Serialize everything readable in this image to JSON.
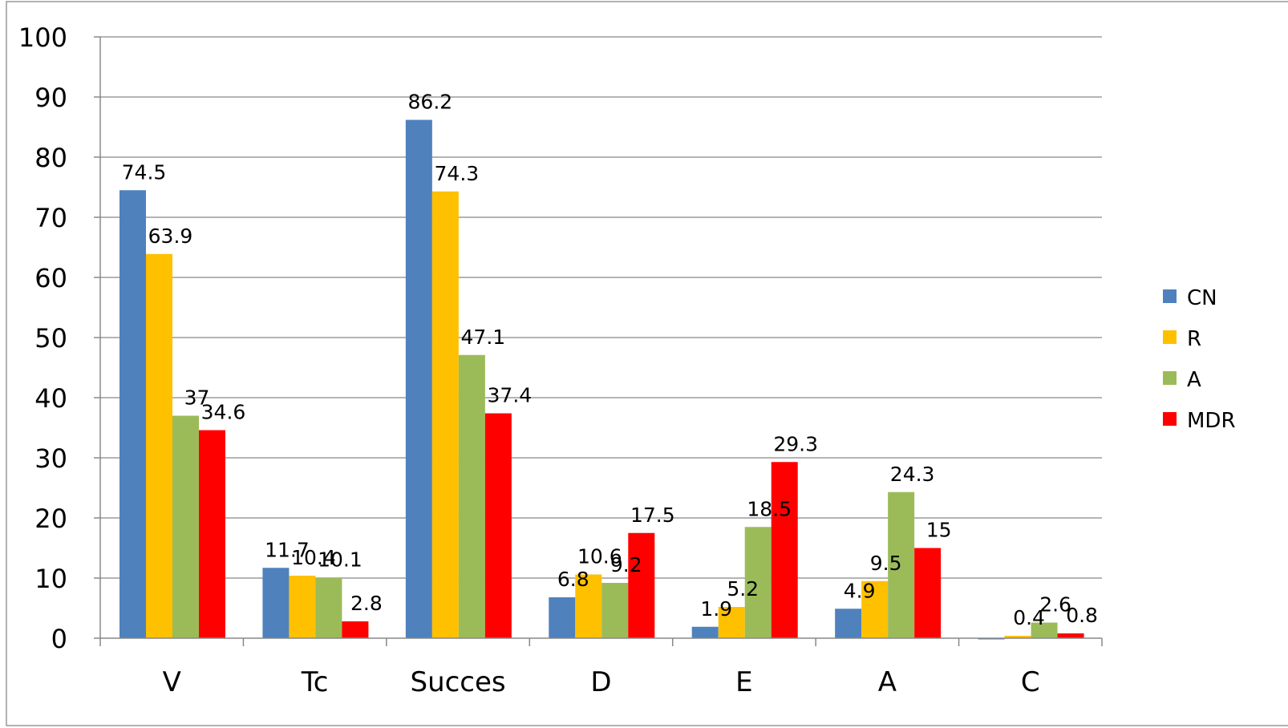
{
  "chart_data": {
    "type": "bar",
    "categories": [
      "V",
      "Tc",
      "Succes",
      "D",
      "E",
      "A",
      "C"
    ],
    "series": [
      {
        "name": "CN",
        "color": "#4F81BD",
        "values": [
          74.5,
          11.7,
          86.2,
          6.8,
          1.9,
          4.9,
          0.0
        ]
      },
      {
        "name": "R",
        "color": "#FFC000",
        "values": [
          63.9,
          10.4,
          74.3,
          10.6,
          5.2,
          9.5,
          0.4
        ]
      },
      {
        "name": "A",
        "color": "#9BBB59",
        "values": [
          37,
          10.1,
          47.1,
          9.2,
          18.5,
          24.3,
          2.6
        ]
      },
      {
        "name": "MDR",
        "color": "#FF0000",
        "values": [
          34.6,
          2.8,
          37.4,
          17.5,
          29.3,
          15,
          0.8
        ]
      }
    ],
    "data_labels": [
      [
        "74.5",
        "11.7",
        "86.2",
        "6.8",
        "1.9",
        "4.9",
        ""
      ],
      [
        "63.9",
        "10.4",
        "74.3",
        "10.6",
        "5.2",
        "9.5",
        "0.4"
      ],
      [
        "37",
        "10.1",
        "47.1",
        "9.2",
        "18.5",
        "24.3",
        "2.6"
      ],
      [
        "34.6",
        "2.8",
        "37.4",
        "17.5",
        "29.3",
        "15",
        "0.8"
      ]
    ],
    "y_ticks": [
      "0",
      "10",
      "20",
      "30",
      "40",
      "50",
      "60",
      "70",
      "80",
      "90",
      "100"
    ],
    "ylim": [
      0,
      100
    ],
    "grid": true,
    "legend_position": "right"
  }
}
